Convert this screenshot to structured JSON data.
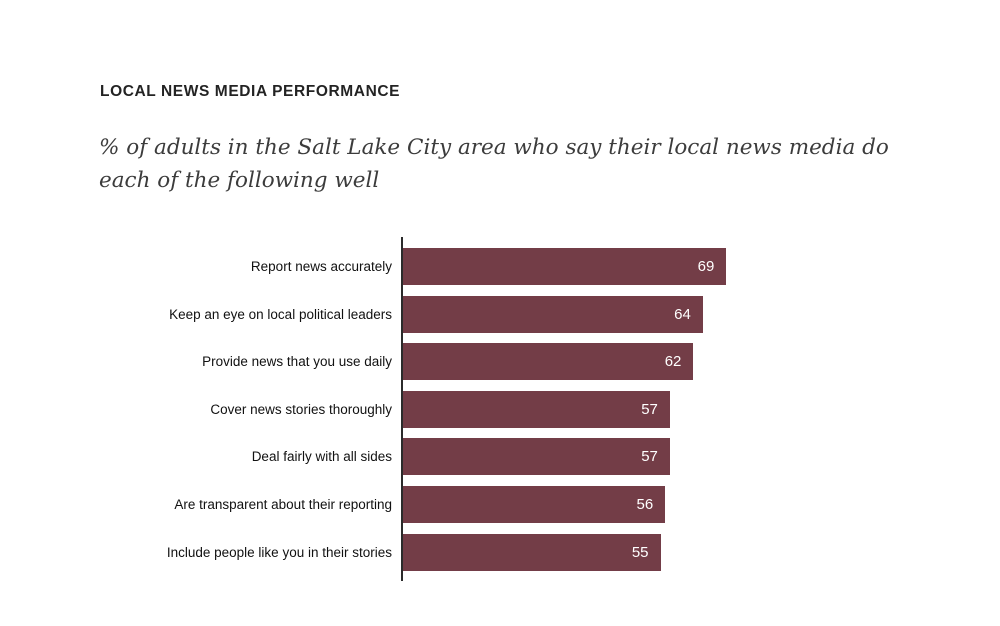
{
  "header": {
    "title": "LOCAL NEWS MEDIA PERFORMANCE",
    "subtitle_lines": [
      "% of adults in the Salt Lake City area who say their local news media do",
      "each of the following well"
    ]
  },
  "chart_data": {
    "type": "bar",
    "orientation": "horizontal",
    "title": "LOCAL NEWS MEDIA PERFORMANCE",
    "subtitle": "% of adults in the Salt Lake City area who say their local news media do each of the following well",
    "categories": [
      "Report news accurately",
      "Keep an eye on local political leaders",
      "Provide news that you use daily",
      "Cover news stories thoroughly",
      "Deal fairly with all sides",
      "Are transparent about their reporting",
      "Include people like you in their stories"
    ],
    "values": [
      69,
      64,
      62,
      57,
      57,
      56,
      55
    ],
    "value_labels": [
      "69",
      "64",
      "62",
      "57",
      "57",
      "56",
      "55"
    ],
    "unit": "percent",
    "xlim": [
      0,
      70
    ],
    "grid": false,
    "legend": "none",
    "value_label_position": "inside-end",
    "colors": {
      "bar": "#733D47",
      "value_text": "#FFFFFF",
      "axis_line": "#2B2B2B",
      "title_text": "#232323",
      "subtitle_text": "#3C3C3C",
      "category_text": "#111111",
      "background": "#FFFFFF"
    }
  }
}
